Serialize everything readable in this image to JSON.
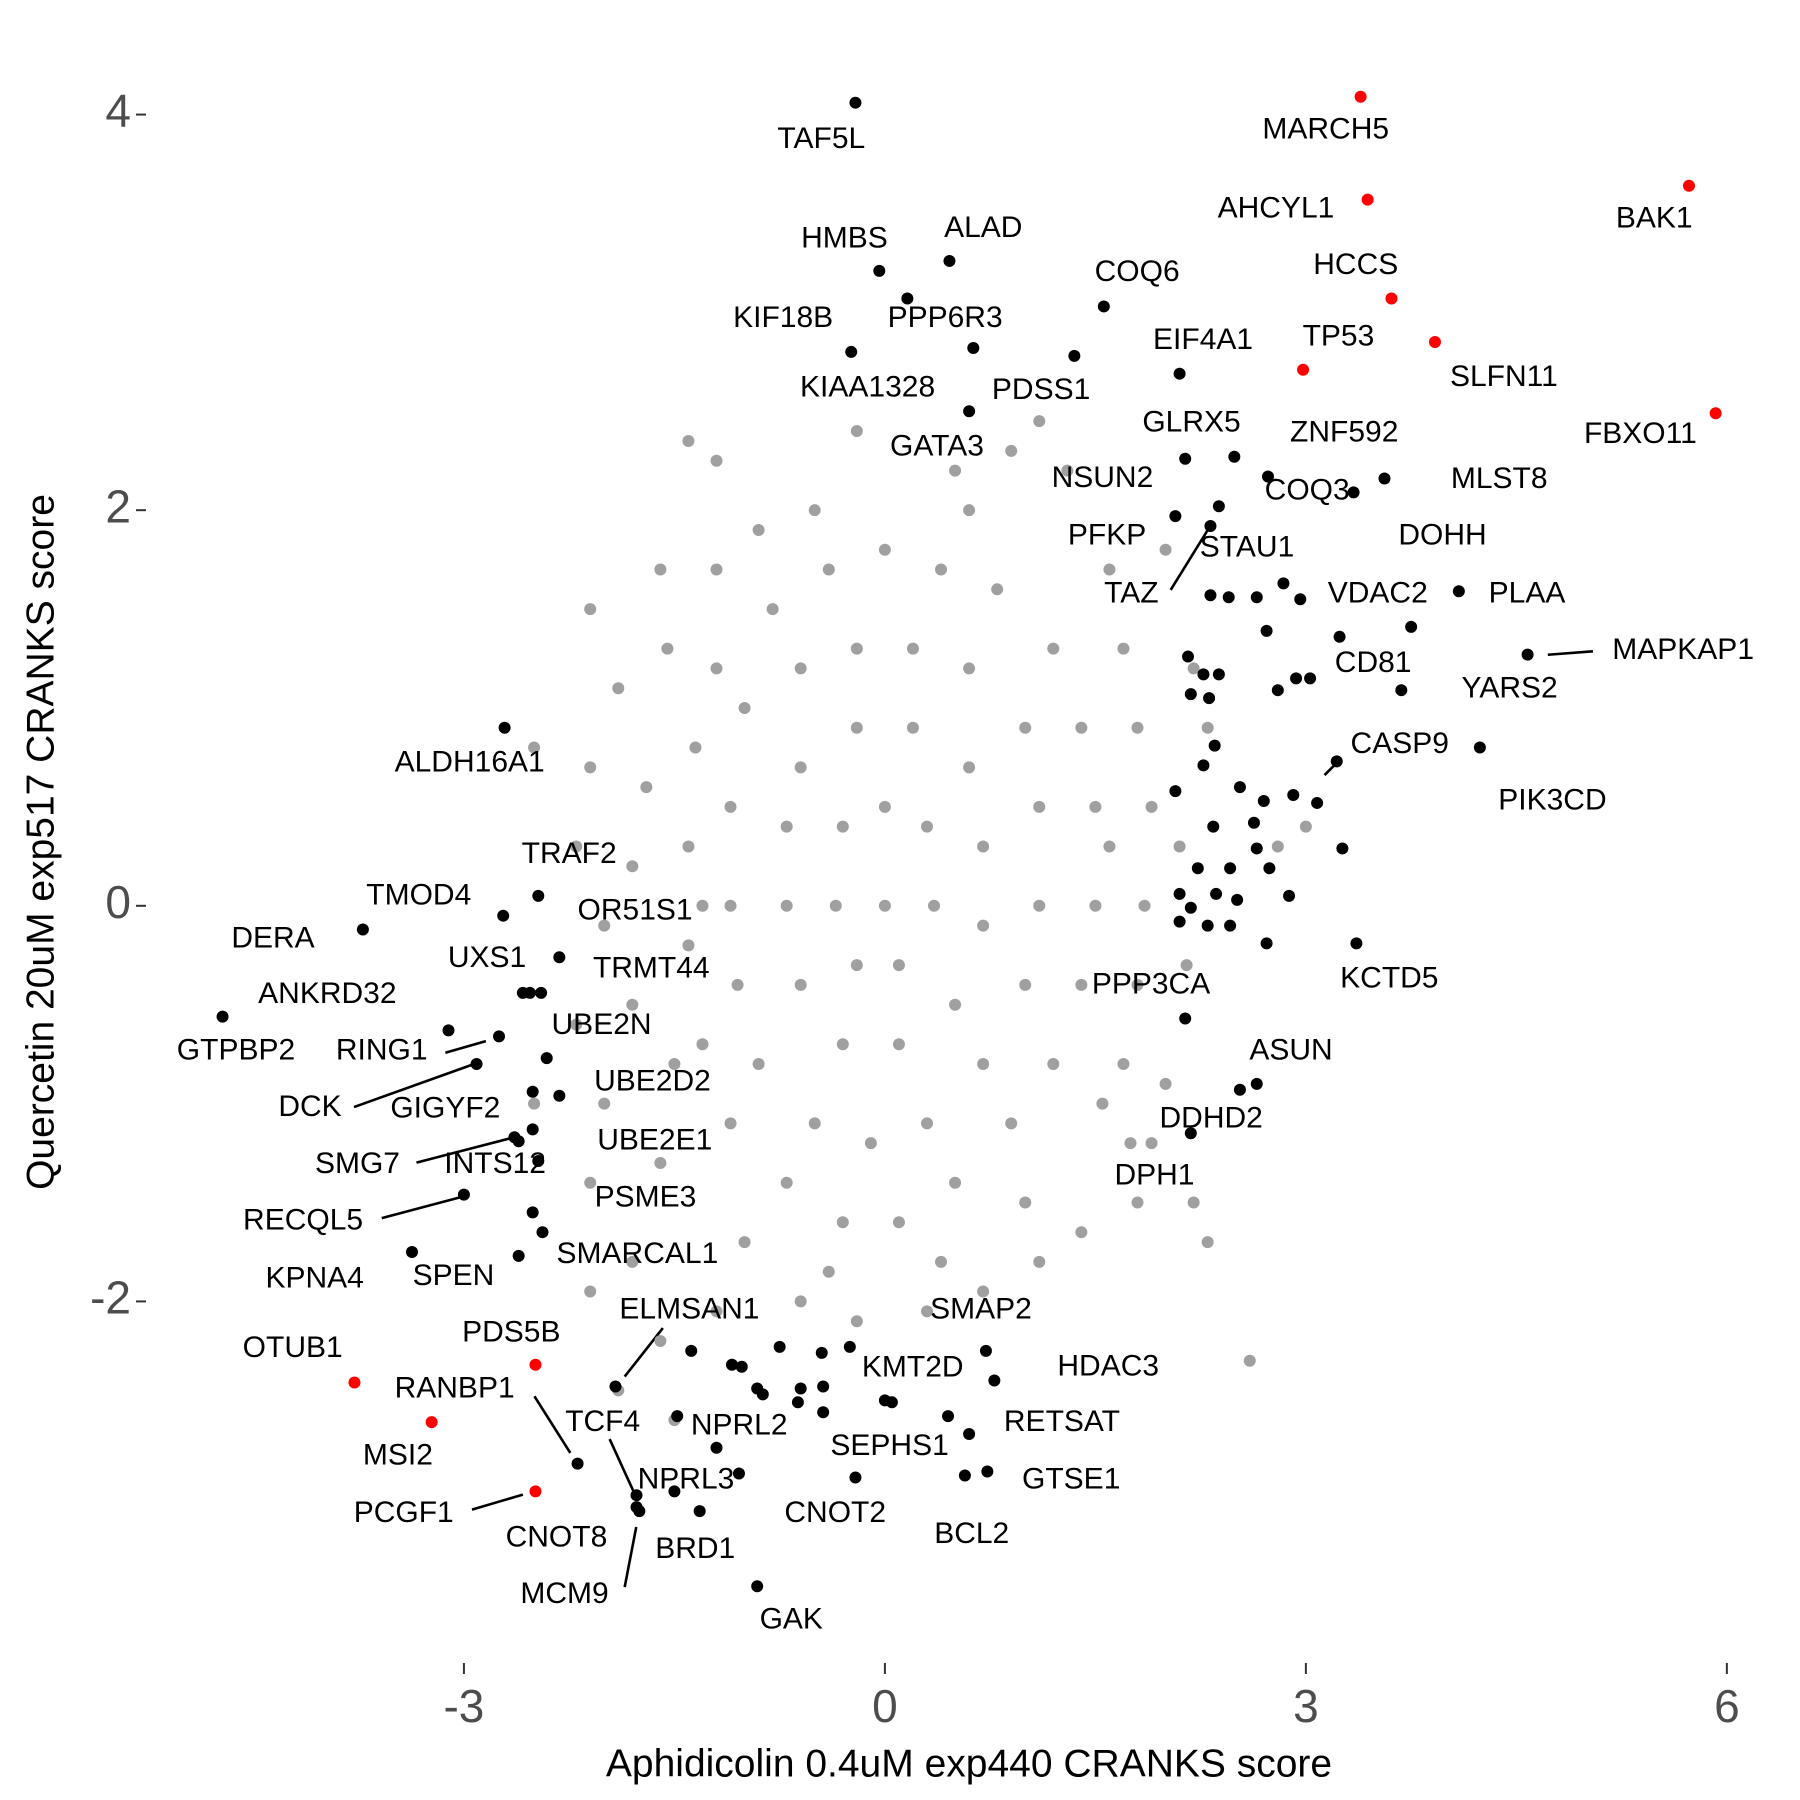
{
  "chart_data": {
    "type": "scatter",
    "x_label": "Aphidicolin 0.4uM exp440 CRANKS score",
    "y_label": "Quercetin 20uM exp517 CRANKS score",
    "xlim": [
      -5.2,
      6.4
    ],
    "ylim": [
      -3.7,
      4.2
    ],
    "xticks": [
      -3,
      0,
      3,
      6
    ],
    "yticks": [
      -2,
      0,
      2,
      4
    ],
    "series": [
      {
        "color": "#a0a0a0",
        "x": [
          -1.2,
          -0.8,
          -0.4,
          0,
          0.4,
          0.8,
          1.2,
          1.4,
          1.5,
          1.5,
          1.4,
          1.2,
          0.9,
          0.5,
          0.1,
          -0.3,
          -0.7,
          -1.1,
          -1.3,
          -1.4,
          -1.4,
          -1.35,
          -1,
          -0.6,
          -0.2,
          0.2,
          0.6,
          1,
          1.1,
          1.1,
          1,
          0.7,
          0.3,
          -0.1,
          -0.5,
          -0.9,
          -1.05,
          -1.1,
          -1.1,
          -0.6,
          -0.2,
          0.2,
          0.6,
          0.7,
          0.7,
          0.5,
          0.1,
          -0.3,
          -0.6,
          -0.7,
          -0.7,
          -0.3,
          0,
          0.3,
          0.35,
          0.1,
          -0.2,
          -0.35,
          0,
          -1.4,
          -1.2,
          -0.2,
          0.9,
          1.3,
          1.1,
          0.5,
          -0.9,
          -1.6,
          -1.55,
          -1.9,
          -2.1,
          -2.1,
          -2.2,
          -2.0,
          -2.2,
          -2.0,
          -2.1,
          -1.8,
          -2.1,
          -1.6,
          -1.2,
          -0.6,
          -0.2,
          0.3,
          0.7,
          1.1,
          1.4,
          1.8,
          1.75,
          1.7,
          1.8,
          1.85,
          1.9,
          1.8,
          1.7,
          1.6,
          2.0,
          2.2,
          2.3,
          2.1,
          2.15,
          2.0,
          1.9,
          2.2,
          2.3,
          2.6,
          3.0,
          2.8,
          -1.3,
          -1.7,
          -1.5,
          -1.6,
          -1.0,
          -0.4,
          0.4,
          1.0,
          1.55,
          1.6,
          0.6,
          -0.5,
          -1.2,
          -1.8,
          -1.8,
          -2.5,
          -2.5,
          -1.9,
          -1.5
        ],
        "values": [
          1.2,
          1.5,
          1.7,
          1.8,
          1.7,
          1.6,
          1.3,
          0.9,
          0.5,
          0,
          -0.4,
          -0.8,
          -1.1,
          -1.4,
          -1.6,
          -1.6,
          -1.4,
          -1.1,
          -0.7,
          -0.2,
          0.3,
          0.8,
          1,
          1.2,
          1.3,
          1.3,
          1.2,
          0.9,
          0.5,
          0,
          -0.4,
          -0.8,
          -1.1,
          -1.2,
          -1.1,
          -0.8,
          -0.4,
          0,
          0.5,
          0.7,
          0.9,
          0.9,
          0.7,
          0.3,
          -0.1,
          -0.5,
          -0.7,
          -0.7,
          -0.4,
          0,
          0.4,
          0.4,
          0.5,
          0.4,
          0,
          -0.3,
          -0.3,
          0,
          0,
          2.35,
          2.25,
          2.4,
          2.3,
          2.2,
          2.45,
          2.2,
          1.9,
          1.7,
          1.3,
          1.1,
          1.5,
          0.7,
          0.3,
          -0.1,
          -0.6,
          -1.0,
          -1.4,
          -1.8,
          -1.95,
          -2.2,
          -2.05,
          -2.0,
          -2.1,
          -2.05,
          -1.95,
          -1.8,
          -1.65,
          -1.5,
          -1.2,
          -0.8,
          -0.4,
          0,
          0.5,
          0.9,
          1.3,
          1.7,
          1.8,
          1.2,
          0.9,
          0.3,
          -0.3,
          -0.9,
          -1.2,
          -1.5,
          -1.7,
          -2.3,
          0.4,
          0.3,
          0.0,
          0.6,
          -0.8,
          -1.3,
          -1.7,
          -1.85,
          -1.8,
          -1.5,
          -1.0,
          0.3,
          2.0,
          2.0,
          1.7,
          0.2,
          -0.5,
          -1.0,
          0.8,
          -2.45,
          -2.6
        ]
      },
      {
        "color": "#000000",
        "x": [
          -0.21,
          -0.04,
          0.46,
          -0.24,
          0.63,
          0.16,
          0.6,
          1.35,
          1.56,
          2.1,
          2.14,
          3.56,
          3.34,
          2.73,
          2.07,
          2.38,
          2.49,
          2.32,
          3.75,
          4.09,
          2.96,
          3.24,
          3.68,
          4.58,
          3.22,
          4.24,
          3.36,
          2.14,
          2.65,
          2.18,
          2.53,
          -2.71,
          -2.47,
          -2.72,
          -3.72,
          -2.32,
          -2.58,
          -2.45,
          -3.11,
          -4.72,
          -2.75,
          -2.41,
          -2.91,
          -2.51,
          -2.32,
          -2.64,
          -2.51,
          -2.47,
          -3.0,
          -2.51,
          -3.37,
          -2.61,
          -2.44,
          -1.92,
          -2.19,
          -1.77,
          -1.2,
          -1.5,
          -1.77,
          -1.32,
          -1.75,
          -0.91,
          -0.21,
          0,
          -0.25,
          0.72,
          0.78,
          0.6,
          0.73,
          0.57
        ],
        "values": [
          4.06,
          3.21,
          3.26,
          2.8,
          2.82,
          3.07,
          2.5,
          2.78,
          3.03,
          2.69,
          2.26,
          2.16,
          2.09,
          2.17,
          1.97,
          2.02,
          2.27,
          1.92,
          1.41,
          1.59,
          1.55,
          1.36,
          1.09,
          1.27,
          0.73,
          0.8,
          -0.19,
          -0.57,
          -0.9,
          -1.15,
          -0.93,
          0.9,
          0.05,
          -0.05,
          -0.12,
          -0.26,
          -0.44,
          -0.44,
          -0.63,
          -0.56,
          -0.66,
          -0.77,
          -0.8,
          -0.94,
          -0.96,
          -1.17,
          -1.13,
          -1.29,
          -1.46,
          -1.55,
          -1.75,
          -1.77,
          -1.65,
          -2.43,
          -2.82,
          -2.98,
          -2.74,
          -2.96,
          -3.04,
          -3.06,
          -3.06,
          -3.44,
          -2.89,
          -2.5,
          -2.23,
          -2.25,
          -2.4,
          -2.67,
          -2.86,
          -2.88
        ],
        "labels": [
          "TAF5L",
          "HMBS",
          "ALAD",
          "KIF18B",
          "PPP6R3",
          "KIAA1328",
          "GATA3",
          "PDSS1",
          "COQ6",
          "EIF4A1",
          "GLRX5",
          "ZNF592",
          "MLST8",
          "COQ3",
          "NSUN2",
          "PFKP",
          "STAU1",
          "TAZ",
          "DOHH",
          "PLAA",
          "VDAC2",
          "CD81",
          "YARS2",
          "MAPKAP1",
          "CASP9",
          "PIK3CD",
          "KCTD5",
          "PPP3CA",
          "ASUN",
          "DDHD2",
          "DPH1",
          "ALDH16A1",
          "TRAF2",
          "TMOD4",
          "DERA",
          "OR51S1",
          "UXS1",
          "TRMT44",
          "ANKRD32",
          "GTPBP2",
          "RING1",
          "UBE2N",
          "DCK",
          "GIGYF2",
          "UBE2D2",
          "SMG7",
          "INTS12",
          "UBE2E1",
          "RECQL5",
          "PSME3",
          "KPNA4",
          "SPEN",
          "SMARCAL1",
          "ELMSAN1",
          "RANBP1",
          "TCF4",
          "NPRL2",
          "NPRL3",
          "CNOT8",
          "BRD1",
          "MCM9",
          "GAK",
          "CNOT2",
          "SEPHS1",
          "KMT2D",
          "SMAP2",
          "HDAC3",
          "RETSAT",
          "GTSE1",
          "BCL2"
        ]
      },
      {
        "color": "#000000",
        "x": [
          2.32,
          2.45,
          2.65,
          2.27,
          2.38,
          2.16,
          2.18,
          2.31,
          2.8,
          2.93,
          3.03,
          2.35,
          2.27,
          2.07,
          2.53,
          2.7,
          2.91,
          3.08,
          2.34,
          2.63,
          2.65,
          2.46,
          2.74,
          2.23,
          2.1,
          2.36,
          2.51,
          2.88,
          2.18,
          2.1,
          2.3,
          2.46,
          2.72,
          3.26,
          2.84,
          2.72,
          -1.38,
          -1.09,
          -1.02,
          -0.91,
          -0.87,
          -0.6,
          -0.62,
          -0.44,
          -0.44,
          0.05,
          -1.48,
          -0.75,
          -0.45,
          -1.04,
          0.45,
          -2.53,
          -2.61
        ],
        "values": [
          1.57,
          1.56,
          1.56,
          1.17,
          1.17,
          1.26,
          1.07,
          1.05,
          1.09,
          1.15,
          1.15,
          0.81,
          0.71,
          0.58,
          0.6,
          0.53,
          0.56,
          0.52,
          0.4,
          0.42,
          0.29,
          0.19,
          0.19,
          0.19,
          0.06,
          0.06,
          0.03,
          0.05,
          -0.01,
          -0.08,
          -0.1,
          -0.1,
          -0.19,
          0.29,
          1.63,
          1.39,
          -2.25,
          -2.32,
          -2.33,
          -2.44,
          -2.47,
          -2.44,
          -2.51,
          -2.43,
          -2.56,
          -2.51,
          -2.58,
          -2.23,
          -2.26,
          -2.87,
          -2.58,
          -0.44,
          -1.19
        ]
      },
      {
        "color": "#ff0000",
        "x": [
          3.39,
          3.44,
          5.73,
          3.61,
          3.92,
          2.98,
          5.92,
          -3.78,
          -2.49,
          -3.23,
          -2.49
        ],
        "values": [
          4.09,
          3.57,
          3.64,
          3.07,
          2.85,
          2.71,
          2.49,
          -2.41,
          -2.32,
          -2.61,
          -2.96
        ],
        "labels": [
          "MARCH5",
          "AHCYL1",
          "BAK1",
          "HCCS",
          "SLFN11",
          "TP53",
          "FBXO11",
          "OTUB1",
          "PDS5B",
          "MSI2",
          "PCGF1"
        ]
      }
    ]
  }
}
